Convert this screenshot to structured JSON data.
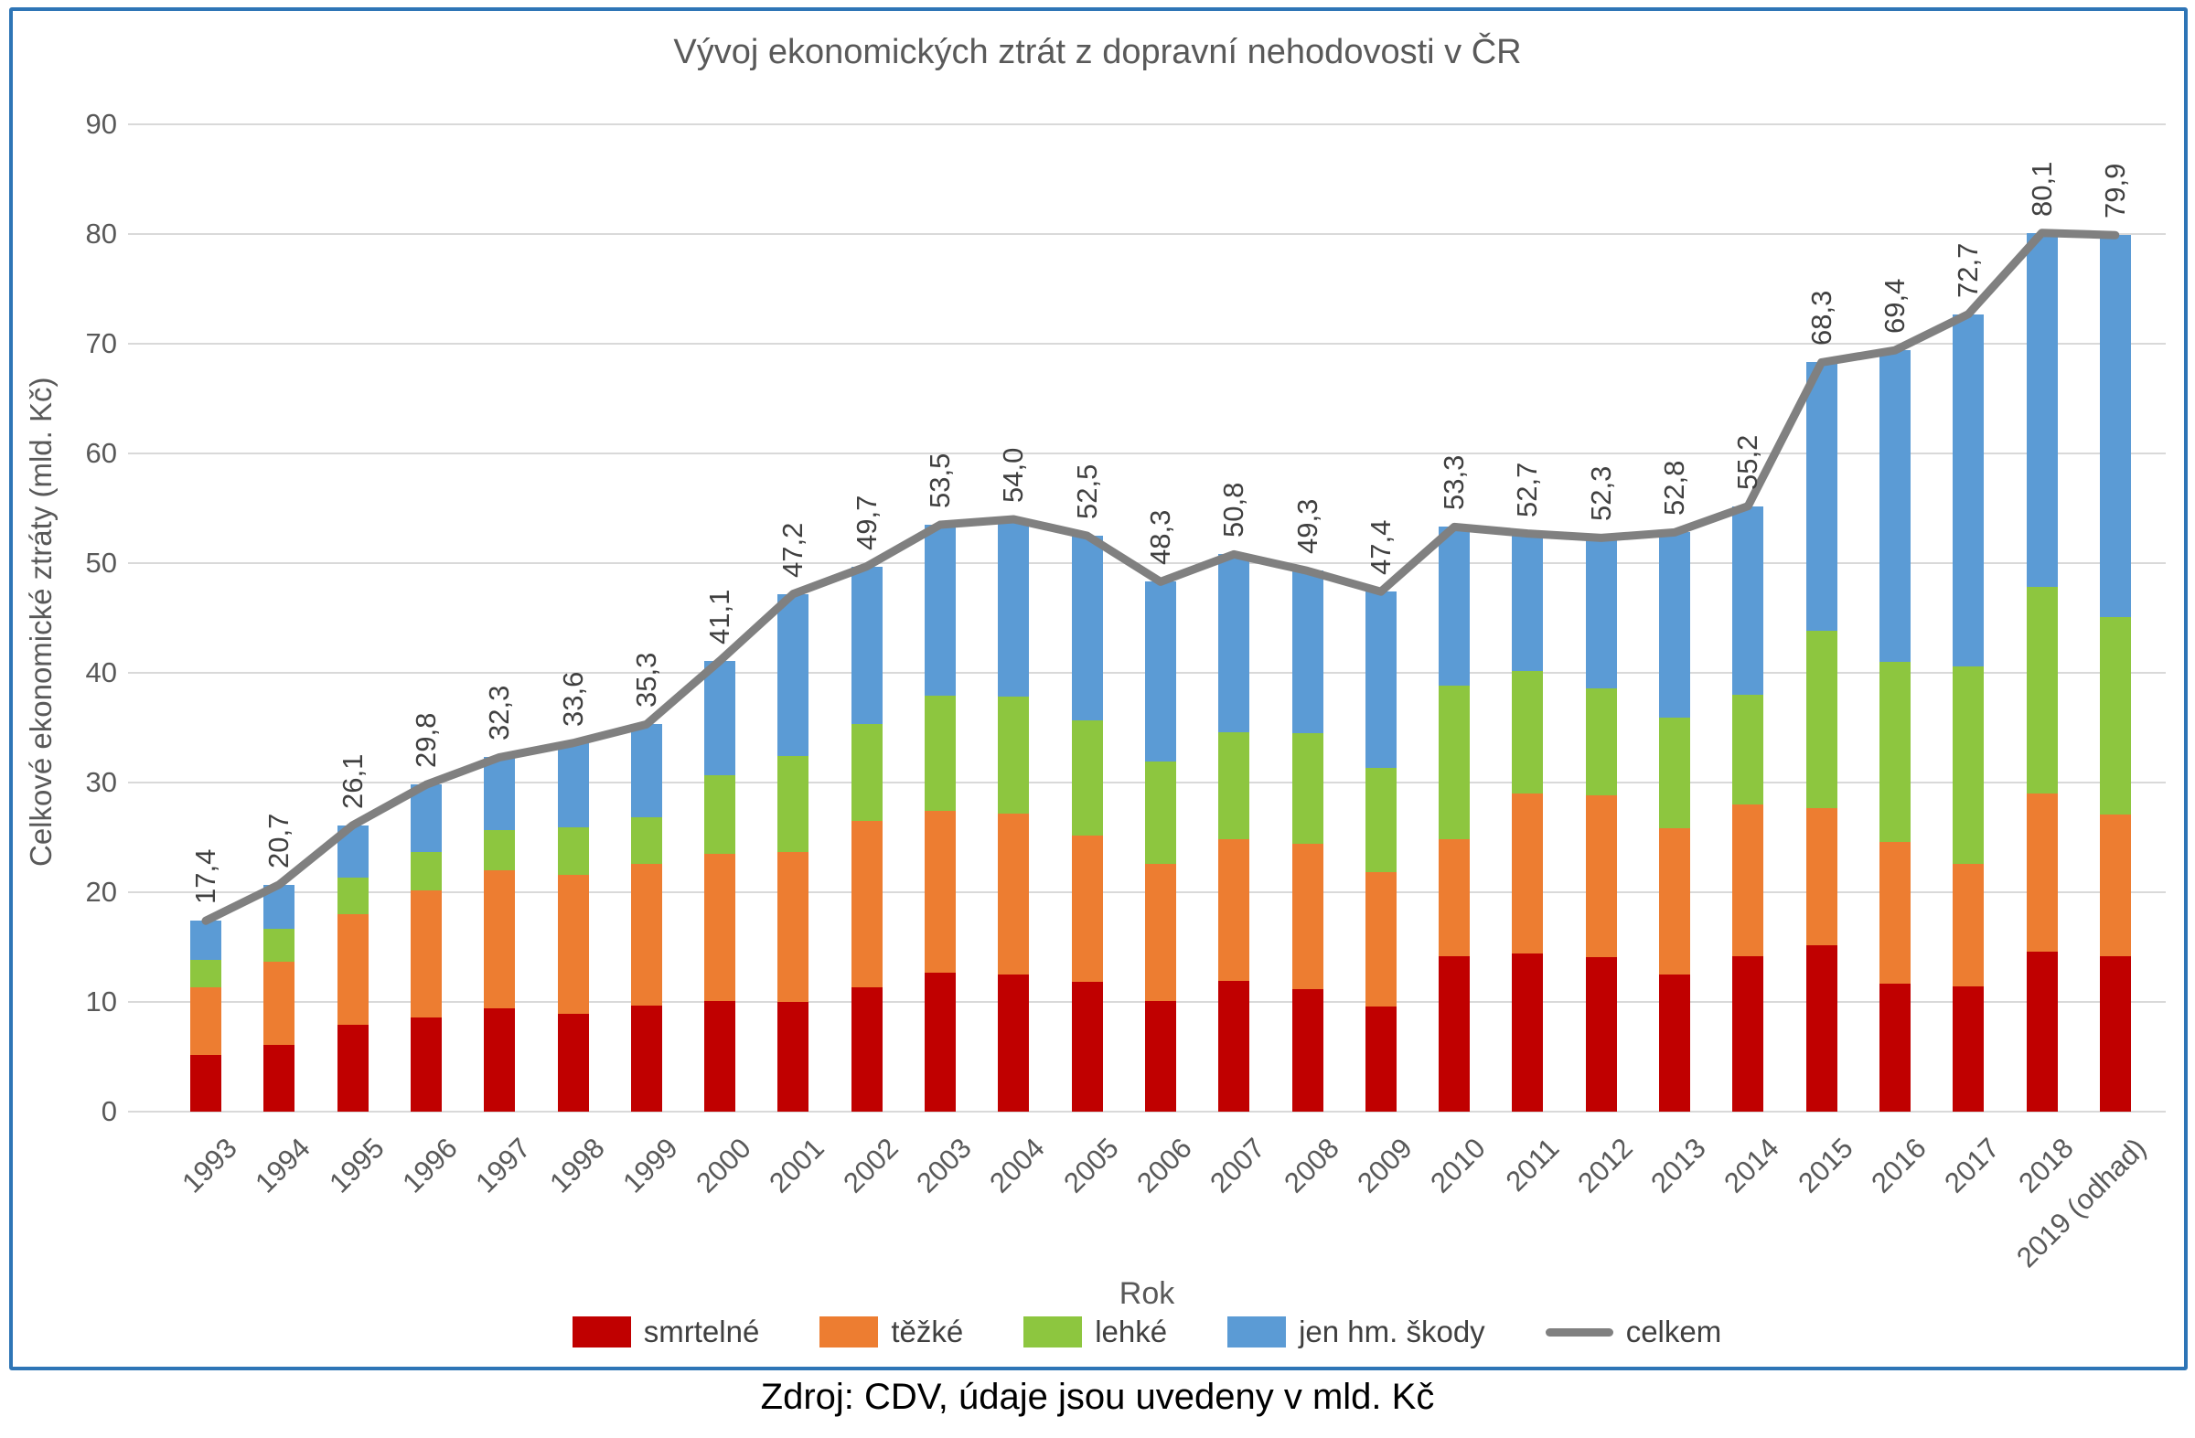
{
  "page": {
    "footer": "Zdroj: CDV, údaje jsou uvedeny v mld. Kč"
  },
  "colors": {
    "frame_border": "#2E75B6",
    "gridline": "#D9D9D9",
    "title_text": "#595959",
    "axis_text": "#595959",
    "value_label_text": "#404040"
  },
  "chart_data": {
    "type": "bar",
    "subtype": "stacked-bars-with-total-line",
    "title": "Vývoj ekonomických ztrát z dopravní nehodovosti v ČR",
    "xlabel": "Rok",
    "ylabel": "Celkové ekonomické ztráty (mld. Kč)",
    "ylim": [
      0,
      90
    ],
    "ytick_step": 10,
    "yticks": [
      0,
      10,
      20,
      30,
      40,
      50,
      60,
      70,
      80,
      90
    ],
    "grid": true,
    "legend_position": "bottom",
    "decimal_separator": ",",
    "categories": [
      "1993",
      "1994",
      "1995",
      "1996",
      "1997",
      "1998",
      "1999",
      "2000",
      "2001",
      "2002",
      "2003",
      "2004",
      "2005",
      "2006",
      "2007",
      "2008",
      "2009",
      "2010",
      "2011",
      "2012",
      "2013",
      "2014",
      "2015",
      "2016",
      "2017",
      "2018",
      "2019 (odhad)"
    ],
    "series": [
      {
        "name": "smrtelné",
        "kind": "bar",
        "color": "#C00000",
        "values": [
          5.2,
          6.1,
          7.9,
          8.6,
          9.4,
          8.9,
          9.7,
          10.1,
          10.0,
          11.3,
          12.7,
          12.5,
          11.8,
          10.1,
          11.9,
          11.2,
          9.6,
          14.2,
          14.4,
          14.1,
          12.5,
          14.2,
          15.2,
          11.7,
          11.4,
          14.6,
          14.2
        ]
      },
      {
        "name": "těžké",
        "kind": "bar",
        "color": "#ED7D31",
        "values": [
          6.1,
          7.6,
          10.1,
          11.6,
          12.6,
          12.7,
          12.9,
          13.4,
          13.7,
          15.2,
          14.7,
          14.7,
          13.4,
          12.5,
          12.9,
          13.2,
          12.2,
          10.6,
          14.6,
          14.7,
          13.3,
          13.8,
          12.5,
          12.9,
          11.2,
          14.4,
          12.9
        ]
      },
      {
        "name": "lehké",
        "kind": "bar",
        "color": "#8DC63F",
        "values": [
          2.5,
          3.0,
          3.3,
          3.5,
          3.7,
          4.3,
          4.2,
          7.2,
          8.7,
          8.8,
          10.5,
          10.6,
          10.5,
          9.3,
          9.8,
          10.1,
          9.5,
          14.0,
          11.2,
          9.8,
          10.1,
          10.0,
          16.1,
          16.4,
          18.0,
          18.8,
          18.0
        ]
      },
      {
        "name": "jen hm. škody",
        "kind": "bar",
        "color": "#5B9BD5",
        "values": [
          3.6,
          4.0,
          4.8,
          6.1,
          6.6,
          7.7,
          8.5,
          10.4,
          14.8,
          14.4,
          15.6,
          16.2,
          16.8,
          16.4,
          16.2,
          14.8,
          16.1,
          14.5,
          12.5,
          13.7,
          16.9,
          17.2,
          24.5,
          28.4,
          32.1,
          32.3,
          34.8
        ]
      },
      {
        "name": "celkem",
        "kind": "line",
        "color": "#808080",
        "values": [
          17.4,
          20.7,
          26.1,
          29.8,
          32.3,
          33.6,
          35.3,
          41.1,
          47.2,
          49.7,
          53.5,
          54.0,
          52.5,
          48.3,
          50.8,
          49.3,
          47.4,
          53.3,
          52.7,
          52.3,
          52.8,
          55.2,
          68.3,
          69.4,
          72.7,
          80.1,
          79.9
        ]
      }
    ],
    "total_labels": [
      "17,4",
      "20,7",
      "26,1",
      "29,8",
      "32,3",
      "33,6",
      "35,3",
      "41,1",
      "47,2",
      "49,7",
      "53,5",
      "54,0",
      "52,5",
      "48,3",
      "50,8",
      "49,3",
      "47,4",
      "53,3",
      "52,7",
      "52,3",
      "52,8",
      "55,2",
      "68,3",
      "69,4",
      "72,7",
      "80,1",
      "79,9"
    ]
  }
}
